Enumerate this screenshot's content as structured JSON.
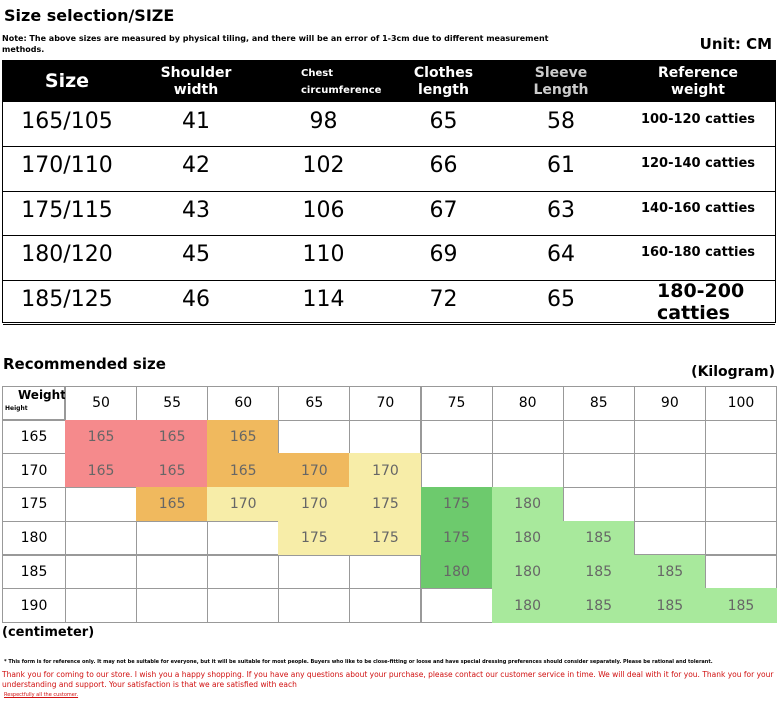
{
  "header": {
    "title": "Size selection/SIZE",
    "note": "Note: The above sizes are measured by physical tiling, and there will be an error of 1-3cm due to different measurement methods.",
    "unit": "Unit: CM"
  },
  "size_table": {
    "columns": [
      "Size",
      "Shoulder width",
      "Chest circumference",
      "Clothes length",
      "Sleeve Length",
      "Reference weight"
    ],
    "rows": [
      [
        "165/105",
        41,
        98,
        65,
        58,
        "100-120 catties"
      ],
      [
        "170/110",
        42,
        102,
        66,
        61,
        "120-140 catties"
      ],
      [
        "175/115",
        43,
        106,
        67,
        63,
        "140-160 catties"
      ],
      [
        "180/120",
        45,
        110,
        69,
        64,
        "160-180 catties"
      ],
      [
        "185/125",
        46,
        114,
        72,
        65,
        "180-200 catties"
      ]
    ]
  },
  "recommended": {
    "title": "Recommended size",
    "unit": "(Kilogram)",
    "corner_weight": "Weight",
    "corner_height": "Height",
    "height_unit": "(centimeter)",
    "weights": [
      50,
      55,
      60,
      65,
      70,
      75,
      80,
      85,
      90,
      100
    ],
    "heights": [
      165,
      170,
      175,
      180,
      185,
      190
    ],
    "cells": [
      [
        165,
        165,
        165,
        null,
        null,
        null,
        null,
        null,
        null,
        null
      ],
      [
        165,
        165,
        165,
        170,
        170,
        null,
        null,
        null,
        null,
        null
      ],
      [
        null,
        165,
        170,
        170,
        175,
        175,
        180,
        null,
        null,
        null
      ],
      [
        null,
        null,
        null,
        175,
        175,
        175,
        180,
        185,
        null,
        null
      ],
      [
        null,
        null,
        null,
        null,
        null,
        180,
        180,
        185,
        185,
        null
      ],
      [
        null,
        null,
        null,
        null,
        null,
        null,
        180,
        185,
        185,
        185
      ]
    ],
    "fills": [
      [
        "#f58a8c",
        "#f58a8c",
        "#f0b95e",
        null,
        null,
        null,
        null,
        null,
        null,
        null
      ],
      [
        "#f58a8c",
        "#f58a8c",
        "#f0b95e",
        "#f0b95e",
        "#f7eda8",
        null,
        null,
        null,
        null,
        null
      ],
      [
        null,
        "#f0b95e",
        "#f7eda8",
        "#f7eda8",
        "#f7eda8",
        "#6dca6d",
        "#a8e99c",
        null,
        null,
        null
      ],
      [
        null,
        null,
        null,
        "#f7eda8",
        "#f7eda8",
        "#6dca6d",
        "#a8e99c",
        "#a8e99c",
        null,
        null
      ],
      [
        null,
        null,
        null,
        null,
        null,
        "#6dca6d",
        "#a8e99c",
        "#a8e99c",
        "#a8e99c",
        null
      ],
      [
        null,
        null,
        null,
        null,
        null,
        null,
        "#a8e99c",
        "#a8e99c",
        "#a8e99c",
        "#a8e99c"
      ]
    ]
  },
  "footer": {
    "disclaimer": "* This form is for reference only. It may not be suitable for everyone, but it will be suitable for most people. Buyers who like to be close-fitting or loose and have special dressing preferences should consider separately. Please be rational and tolerant.",
    "thanks": "Thank you for coming to our store. I wish you a happy shopping. If you have any questions about your purchase, please contact our customer service in time. We will deal with it for you. Thank you for your understanding and support. Your satisfaction is that we are satisfied with each",
    "sign": "Respectfully all the customer."
  }
}
